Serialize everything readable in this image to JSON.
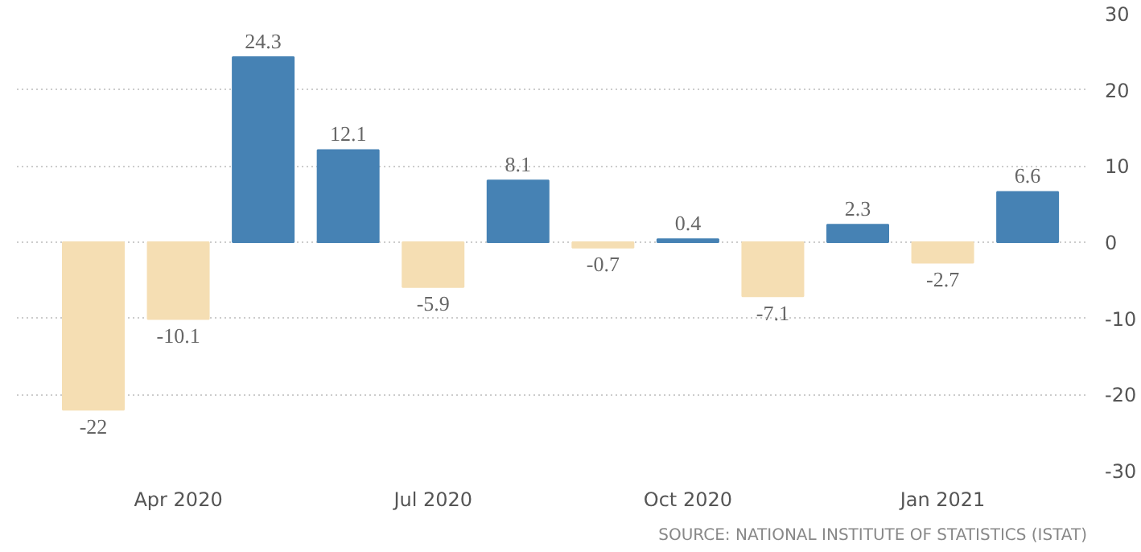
{
  "chart_data": {
    "type": "bar",
    "categories": [
      null,
      "Apr 2020",
      null,
      null,
      "Jul 2020",
      null,
      null,
      "Oct 2020",
      null,
      null,
      "Jan 2021",
      null
    ],
    "values": [
      -22,
      -10.1,
      24.3,
      12.1,
      -5.9,
      8.1,
      -0.7,
      0.4,
      -7.1,
      2.3,
      -2.7,
      6.6
    ],
    "colors": [
      "#f5deb3",
      "#f5deb3",
      "#4682b4",
      "#4682b4",
      "#f5deb3",
      "#4682b4",
      "#f5deb3",
      "#4682b4",
      "#f5deb3",
      "#4682b4",
      "#f5deb3",
      "#4682b4"
    ],
    "ylim": [
      -30,
      30
    ],
    "yticks": [
      -30,
      -20,
      -10,
      0,
      10,
      20,
      30
    ],
    "grid": "y",
    "data_labels": true,
    "annotations": [
      "SOURCE: NATIONAL INSTITUTE OF STATISTICS (ISTAT)"
    ]
  }
}
